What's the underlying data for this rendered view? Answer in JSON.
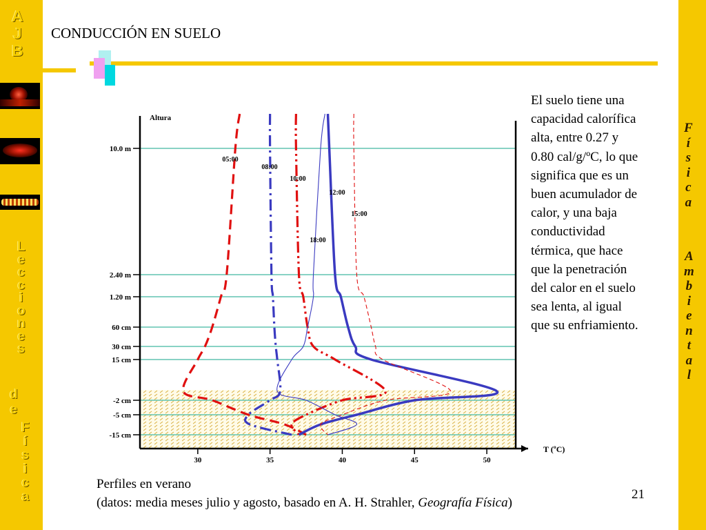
{
  "slide": {
    "title": "CONDUCCIÓN EN SUELO",
    "page_number": "21",
    "left_letters": {
      "top": [
        "A",
        "J",
        "B"
      ],
      "lecciones": [
        "L",
        "e",
        "c",
        "c",
        "i",
        "o",
        "n",
        "e",
        "s"
      ],
      "de": [
        "d",
        "e"
      ],
      "fisica": [
        "F",
        "í",
        "s",
        "i",
        "c",
        "a"
      ]
    },
    "right_letters": {
      "fisica": [
        "F",
        "í",
        "s",
        "i",
        "c",
        "a"
      ],
      "ambiental": [
        "A",
        "m",
        "b",
        "i",
        "e",
        "n",
        "t",
        "a",
        "l"
      ]
    },
    "description": "El suelo tiene una capacidad calorífica alta, entre 0.27 y 0.80 cal/g/ºC, lo que significa que es un buen acumulador de calor, y una baja conductividad térmica, que hace que la penetración del calor en el suelo sea lenta, al igual que su enfriamiento.",
    "caption_line1": "Perfiles en verano",
    "caption_line2_prefix": "(datos: media meses julio y agosto, basado en A. H. Strahler, ",
    "caption_line2_italic": "Geografía Física",
    "caption_line2_suffix": ")"
  },
  "colors": {
    "side_bar": "#f5c800",
    "line_red": "#e01010",
    "line_blue": "#3a3ac0",
    "grid_teal": "#40b8a0",
    "soil_hatch": "#e0c060"
  },
  "chart_data": {
    "type": "line",
    "title": "",
    "xlabel": "T (ºC)",
    "ylabel": "Altura",
    "x_ticks": [
      30,
      35,
      40,
      45,
      50
    ],
    "xlim": [
      26,
      52
    ],
    "depth_levels": [
      "10.0 m",
      "2.40 m",
      "1.20 m",
      "60 cm",
      "30 cm",
      "15 cm",
      "-2 cm",
      "-5 cm",
      "-15 cm"
    ],
    "soil_region": "below 0 cm",
    "series": [
      {
        "name": "05:00",
        "color": "red",
        "style": "dash",
        "points": [
          [
            32.9,
            "top"
          ],
          [
            32.6,
            "10.0 m"
          ],
          [
            32.0,
            "2.40 m"
          ],
          [
            31.6,
            "1.20 m"
          ],
          [
            31.0,
            "60 cm"
          ],
          [
            30.5,
            "30 cm"
          ],
          [
            30.0,
            "15 cm"
          ],
          [
            29.0,
            "0 cm"
          ],
          [
            31.0,
            "-2 cm"
          ],
          [
            33.5,
            "-5 cm"
          ],
          [
            36.0,
            "-10 cm"
          ],
          [
            37.5,
            "-15 cm"
          ]
        ]
      },
      {
        "name": "08:00",
        "color": "blue",
        "style": "dashdot",
        "points": [
          [
            35.0,
            "top"
          ],
          [
            35.0,
            "10.0 m"
          ],
          [
            35.1,
            "2.40 m"
          ],
          [
            35.2,
            "1.20 m"
          ],
          [
            35.3,
            "60 cm"
          ],
          [
            35.4,
            "30 cm"
          ],
          [
            35.5,
            "15 cm"
          ],
          [
            35.7,
            "0 cm"
          ],
          [
            35.0,
            "-2 cm"
          ],
          [
            33.5,
            "-5 cm"
          ],
          [
            33.6,
            "-10 cm"
          ],
          [
            36.5,
            "-15 cm"
          ]
        ]
      },
      {
        "name": "10:00",
        "color": "red",
        "style": "dashdotdot",
        "points": [
          [
            36.8,
            "top"
          ],
          [
            36.8,
            "10.0 m"
          ],
          [
            37.0,
            "2.40 m"
          ],
          [
            37.3,
            "1.20 m"
          ],
          [
            37.6,
            "60 cm"
          ],
          [
            38.0,
            "30 cm"
          ],
          [
            39.5,
            "15 cm"
          ],
          [
            43.0,
            "0 cm"
          ],
          [
            40.0,
            "-2 cm"
          ],
          [
            37.5,
            "-5 cm"
          ],
          [
            36.5,
            "-10 cm"
          ],
          [
            37.0,
            "-15 cm"
          ]
        ]
      },
      {
        "name": "12:00",
        "color": "blue",
        "style": "solid-thick",
        "points": [
          [
            39.0,
            "top"
          ],
          [
            39.1,
            "10.0 m"
          ],
          [
            39.5,
            "2.40 m"
          ],
          [
            39.9,
            "1.20 m"
          ],
          [
            40.4,
            "60 cm"
          ],
          [
            40.9,
            "30 cm"
          ],
          [
            42.0,
            "15 cm"
          ],
          [
            50.7,
            "0 cm"
          ],
          [
            45.0,
            "-2 cm"
          ],
          [
            41.0,
            "-5 cm"
          ],
          [
            38.5,
            "-10 cm"
          ],
          [
            37.0,
            "-15 cm"
          ]
        ]
      },
      {
        "name": "15:00",
        "color": "red",
        "style": "dash-thin",
        "points": [
          [
            40.8,
            "top"
          ],
          [
            40.8,
            "10.0 m"
          ],
          [
            41.0,
            "2.40 m"
          ],
          [
            41.5,
            "1.20 m"
          ],
          [
            42.0,
            "60 cm"
          ],
          [
            42.3,
            "30 cm"
          ],
          [
            42.8,
            "15 cm"
          ],
          [
            47.5,
            "0 cm"
          ],
          [
            43.0,
            "-2 cm"
          ],
          [
            40.0,
            "-5 cm"
          ],
          [
            38.5,
            "-10 cm"
          ],
          [
            39.0,
            "-15 cm"
          ]
        ]
      },
      {
        "name": "18:00",
        "color": "blue",
        "style": "solid-thin",
        "points": [
          [
            38.8,
            "top"
          ],
          [
            38.5,
            "10.0 m"
          ],
          [
            38.0,
            "2.40 m"
          ],
          [
            38.0,
            "1.20 m"
          ],
          [
            37.6,
            "60 cm"
          ],
          [
            37.3,
            "30 cm"
          ],
          [
            36.5,
            "15 cm"
          ],
          [
            35.5,
            "0 cm"
          ],
          [
            37.5,
            "-2 cm"
          ],
          [
            39.5,
            "-5 cm"
          ],
          [
            41.0,
            "-10 cm"
          ],
          [
            39.0,
            "-15 cm"
          ]
        ]
      }
    ]
  }
}
